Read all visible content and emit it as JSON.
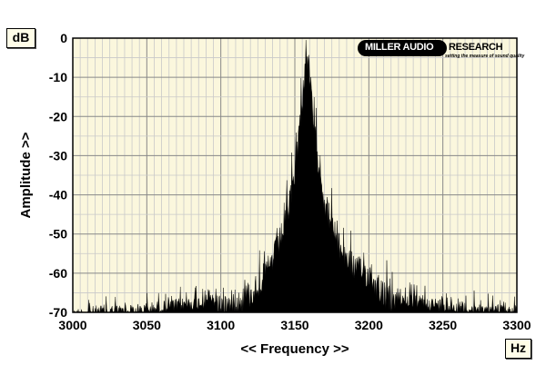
{
  "chart_data": {
    "type": "area",
    "xlabel": "<< Frequency >>",
    "ylabel": "Amplitude >>",
    "x_unit": "Hz",
    "y_unit": "dB",
    "xlim": [
      3000,
      3300
    ],
    "ylim": [
      -70,
      0
    ],
    "xticks": [
      3000,
      3050,
      3100,
      3150,
      3200,
      3250,
      3300
    ],
    "yticks": [
      0,
      -10,
      -20,
      -30,
      -40,
      -50,
      -60,
      -70
    ],
    "grid": true,
    "series": [
      {
        "x": [
          3000,
          3020,
          3040,
          3060,
          3080,
          3100,
          3110,
          3120,
          3130,
          3135,
          3140,
          3145,
          3150,
          3153,
          3156,
          3158,
          3160,
          3163,
          3166,
          3170,
          3175,
          3180,
          3190,
          3200,
          3210,
          3220,
          3240,
          3260,
          3280,
          3300
        ],
        "y": [
          -69,
          -68,
          -68,
          -67,
          -66,
          -65,
          -64,
          -62,
          -57,
          -53,
          -48,
          -42,
          -30,
          -20,
          -8,
          0,
          -6,
          -20,
          -28,
          -38,
          -44,
          -50,
          -55,
          -57,
          -62,
          -65,
          -66,
          -67,
          -68,
          -68
        ]
      }
    ]
  },
  "logo": {
    "left_text": "MILLER AUDIO",
    "right_text": "RESEARCH",
    "tagline": "setting the measure of sound quality"
  }
}
